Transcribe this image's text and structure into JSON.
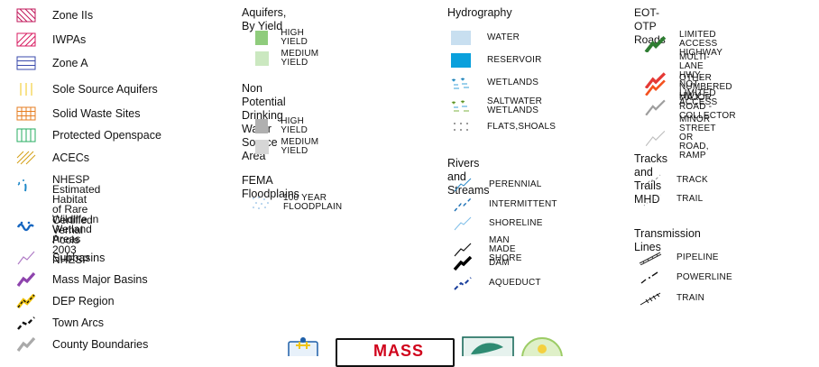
{
  "col1": [
    {
      "label": "Zone IIs",
      "icon": "zone-iis-hatch-icon",
      "color": "#c2185b"
    },
    {
      "label": "IWPAs",
      "icon": "iwpa-hatch-icon",
      "color": "#d81b60"
    },
    {
      "label": "Zone A",
      "icon": "zone-a-lines-icon",
      "color": "#3949ab"
    },
    {
      "label": "Sole Source Aquifers",
      "icon": "sole-source-lines-icon",
      "color": "#f4d03f"
    },
    {
      "label": "Solid Waste Sites",
      "icon": "solid-waste-grid-icon",
      "color": "#e67e22"
    },
    {
      "label": "Protected Openspace",
      "icon": "openspace-lines-icon",
      "color": "#27ae60"
    },
    {
      "label": "ACECs",
      "icon": "acec-hatch-icon",
      "color": "#d4a017"
    },
    {
      "label": "NHESP Estimated Habitat\nof Rare Wildlife in\nWetland Areas",
      "icon": "habitat-dots-icon",
      "color": "#1e88c8"
    },
    {
      "label": "Certified Vernal Pools\n2003 NHESP",
      "icon": "vernal-pool-icon",
      "color": "#1565c0"
    },
    {
      "label": "Subbasins",
      "icon": "subbasin-line-icon",
      "color": "#b07cc6"
    },
    {
      "label": "Mass Major Basins",
      "icon": "major-basin-line-icon",
      "color": "#8e44ad"
    },
    {
      "label": "DEP Region",
      "icon": "dep-region-line-icon",
      "color": "#f1c40f"
    },
    {
      "label": "Town Arcs",
      "icon": "town-arcs-icon",
      "color": "#111111"
    },
    {
      "label": "County Boundaries",
      "icon": "county-boundary-icon",
      "color": "#aaaaaa"
    }
  ],
  "aquifers": {
    "title": "Aquifers, By Yield",
    "items": [
      {
        "label": "HIGH YIELD",
        "color": "#8fcc7c"
      },
      {
        "label": "MEDIUM YIELD",
        "color": "#cbe8c0"
      }
    ]
  },
  "nonpotential": {
    "title": "Non Potential Drinking\nWater Source Area",
    "items": [
      {
        "label": "HIGH YIELD",
        "color": "#b0b0b0"
      },
      {
        "label": "MEDIUM YIELD",
        "color": "#d6d6d6"
      }
    ]
  },
  "fema": {
    "title": "FEMA Floodplains",
    "items": [
      {
        "label": "100 YEAR FLOODPLAIN",
        "color": "#6fa8dc"
      }
    ]
  },
  "hydro": {
    "title": "Hydrography",
    "items": [
      {
        "label": "WATER",
        "icon": "water-swatch-icon",
        "color": "#c8dff0"
      },
      {
        "label": "RESERVOIR",
        "icon": "reservoir-swatch-icon",
        "color": "#0aa0dc"
      },
      {
        "label": "WETLANDS",
        "icon": "wetlands-icon",
        "color": "#3aa0d8"
      },
      {
        "label": "SALTWATER WETLANDS",
        "icon": "saltwater-wetlands-icon",
        "color": "#7cb342"
      },
      {
        "label": "FLATS,SHOALS",
        "icon": "flats-shoals-icon",
        "color": "#555555"
      }
    ]
  },
  "rivers": {
    "title": "Rivers and Streams",
    "items": [
      {
        "label": "PERENNIAL",
        "icon": "perennial-line-icon",
        "color": "#2a88c8"
      },
      {
        "label": "INTERMITTENT",
        "icon": "intermittent-line-icon",
        "color": "#1a6fb5"
      },
      {
        "label": "SHORELINE",
        "icon": "shoreline-line-icon",
        "color": "#7cbde8"
      },
      {
        "label": "MAN MADE SHORE",
        "icon": "man-made-shore-icon",
        "color": "#111111"
      },
      {
        "label": "DAM",
        "icon": "dam-line-icon",
        "color": "#000000"
      },
      {
        "label": "AQUEDUCT",
        "icon": "aqueduct-line-icon",
        "color": "#1a3f9c"
      }
    ]
  },
  "roads": {
    "title": "EOT-OTP Roads",
    "items": [
      {
        "label": "LIMITED ACCESS HIGHWAY",
        "icon": "limited-access-icon",
        "color": "#2e7d32"
      },
      {
        "label": "MULTI-LANE HWY, NOT\nLIMITED ACCESS",
        "icon": "multilane-hwy-icon",
        "color": "#e53935"
      },
      {
        "label": "OTHER NUMBERED HWY",
        "icon": "numbered-hwy-icon",
        "color": "#f4511e"
      },
      {
        "label": "MAJOR ROAD - COLLECTOR",
        "icon": "major-road-icon",
        "color": "#9e9e9e"
      },
      {
        "label": "MINOR STREET OR ROAD,\nRAMP",
        "icon": "minor-street-icon",
        "color": "#bdbdbd"
      }
    ]
  },
  "tracks": {
    "title": "Tracks and Trails MHD",
    "items": [
      {
        "label": "TRACK",
        "icon": "track-line-icon",
        "color": "#888888"
      },
      {
        "label": "TRAIL",
        "icon": "trail-line-icon",
        "color": "#888888"
      }
    ]
  },
  "transmission": {
    "title": "Transmission Lines",
    "items": [
      {
        "label": "PIPELINE",
        "icon": "pipeline-line-icon",
        "color": "#333333"
      },
      {
        "label": "POWERLINE",
        "icon": "powerline-line-icon",
        "color": "#111111"
      },
      {
        "label": "TRAIN",
        "icon": "train-line-icon",
        "color": "#111111"
      }
    ]
  },
  "logos": {
    "mass_text": "MASS"
  }
}
